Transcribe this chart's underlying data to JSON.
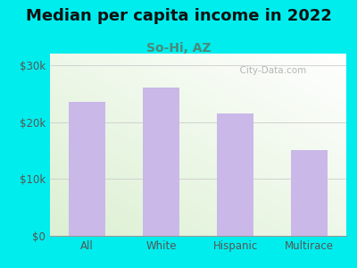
{
  "title": "Median per capita income in 2022",
  "subtitle": "So-Hi, AZ",
  "categories": [
    "All",
    "White",
    "Hispanic",
    "Multirace"
  ],
  "values": [
    23500,
    26000,
    21500,
    15000
  ],
  "bar_color": "#c9b8e8",
  "title_fontsize": 13,
  "title_color": "#111111",
  "subtitle_fontsize": 10,
  "subtitle_color": "#4a8a7a",
  "tick_label_color": "#555555",
  "background_outer": "#00eded",
  "ylim": [
    0,
    32000
  ],
  "yticks": [
    0,
    10000,
    20000,
    30000
  ],
  "ytick_labels": [
    "$0",
    "$10k",
    "$20k",
    "$30k"
  ],
  "watermark": "  City-Data.com"
}
